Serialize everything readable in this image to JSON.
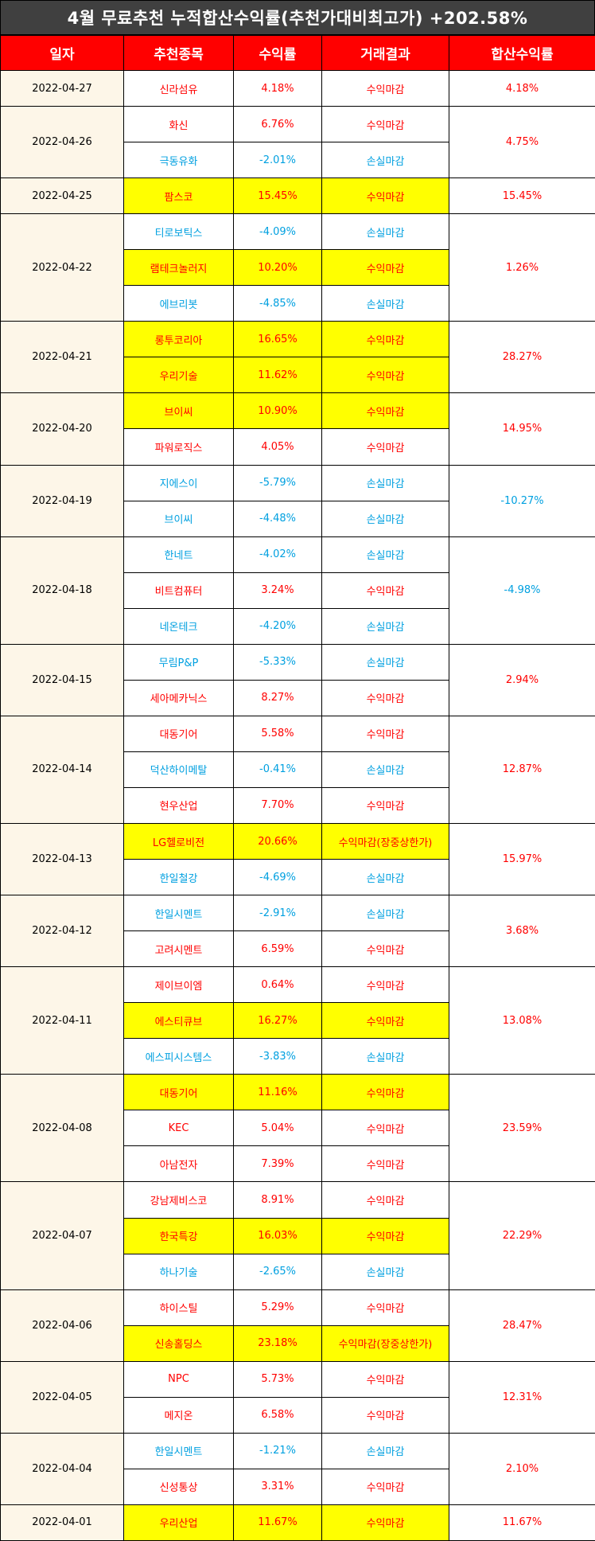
{
  "title": "4월 무료추천 누적합산수익률(추천가대비최고가) +202.58%",
  "headers": [
    "일자",
    "추천종목",
    "수익률",
    "거래결과",
    "합산수익률"
  ],
  "groups": [
    {
      "date": "2022-04-27",
      "total": "4.18%",
      "total_sign": "pos",
      "rows": [
        {
          "stock": "신라섬유",
          "ret": "4.18%",
          "result": "수익마감",
          "sign": "pos",
          "hl": false
        }
      ]
    },
    {
      "date": "2022-04-26",
      "total": "4.75%",
      "total_sign": "pos",
      "rows": [
        {
          "stock": "화신",
          "ret": "6.76%",
          "result": "수익마감",
          "sign": "pos",
          "hl": false
        },
        {
          "stock": "극동유화",
          "ret": "-2.01%",
          "result": "손실마감",
          "sign": "neg",
          "hl": false
        }
      ]
    },
    {
      "date": "2022-04-25",
      "total": "15.45%",
      "total_sign": "pos",
      "rows": [
        {
          "stock": "팜스코",
          "ret": "15.45%",
          "result": "수익마감",
          "sign": "pos",
          "hl": true
        }
      ]
    },
    {
      "date": "2022-04-22",
      "total": "1.26%",
      "total_sign": "pos",
      "rows": [
        {
          "stock": "티로보틱스",
          "ret": "-4.09%",
          "result": "손실마감",
          "sign": "neg",
          "hl": false
        },
        {
          "stock": "램테크놀러지",
          "ret": "10.20%",
          "result": "수익마감",
          "sign": "pos",
          "hl": true
        },
        {
          "stock": "에브리봇",
          "ret": "-4.85%",
          "result": "손실마감",
          "sign": "neg",
          "hl": false
        }
      ]
    },
    {
      "date": "2022-04-21",
      "total": "28.27%",
      "total_sign": "pos",
      "rows": [
        {
          "stock": "롱투코리아",
          "ret": "16.65%",
          "result": "수익마감",
          "sign": "pos",
          "hl": true
        },
        {
          "stock": "우리기술",
          "ret": "11.62%",
          "result": "수익마감",
          "sign": "pos",
          "hl": true
        }
      ]
    },
    {
      "date": "2022-04-20",
      "total": "14.95%",
      "total_sign": "pos",
      "rows": [
        {
          "stock": "브이씨",
          "ret": "10.90%",
          "result": "수익마감",
          "sign": "pos",
          "hl": true
        },
        {
          "stock": "파워로직스",
          "ret": "4.05%",
          "result": "수익마감",
          "sign": "pos",
          "hl": false
        }
      ]
    },
    {
      "date": "2022-04-19",
      "total": "-10.27%",
      "total_sign": "neg",
      "rows": [
        {
          "stock": "지에스이",
          "ret": "-5.79%",
          "result": "손실마감",
          "sign": "neg",
          "hl": false
        },
        {
          "stock": "브이씨",
          "ret": "-4.48%",
          "result": "손실마감",
          "sign": "neg",
          "hl": false
        }
      ]
    },
    {
      "date": "2022-04-18",
      "total": "-4.98%",
      "total_sign": "neg",
      "rows": [
        {
          "stock": "한네트",
          "ret": "-4.02%",
          "result": "손실마감",
          "sign": "neg",
          "hl": false
        },
        {
          "stock": "비트컴퓨터",
          "ret": "3.24%",
          "result": "수익마감",
          "sign": "pos",
          "hl": false
        },
        {
          "stock": "네온테크",
          "ret": "-4.20%",
          "result": "손실마감",
          "sign": "neg",
          "hl": false
        }
      ]
    },
    {
      "date": "2022-04-15",
      "total": "2.94%",
      "total_sign": "pos",
      "rows": [
        {
          "stock": "무림P&P",
          "ret": "-5.33%",
          "result": "손실마감",
          "sign": "neg",
          "hl": false
        },
        {
          "stock": "세아메카닉스",
          "ret": "8.27%",
          "result": "수익마감",
          "sign": "pos",
          "hl": false
        }
      ]
    },
    {
      "date": "2022-04-14",
      "total": "12.87%",
      "total_sign": "pos",
      "rows": [
        {
          "stock": "대동기어",
          "ret": "5.58%",
          "result": "수익마감",
          "sign": "pos",
          "hl": false
        },
        {
          "stock": "덕산하이메탈",
          "ret": "-0.41%",
          "result": "손실마감",
          "sign": "neg",
          "hl": false
        },
        {
          "stock": "현우산업",
          "ret": "7.70%",
          "result": "수익마감",
          "sign": "pos",
          "hl": false
        }
      ]
    },
    {
      "date": "2022-04-13",
      "total": "15.97%",
      "total_sign": "pos",
      "rows": [
        {
          "stock": "LG헬로비전",
          "ret": "20.66%",
          "result": "수익마감(장중상한가)",
          "sign": "pos",
          "hl": true
        },
        {
          "stock": "한일철강",
          "ret": "-4.69%",
          "result": "손실마감",
          "sign": "neg",
          "hl": false
        }
      ]
    },
    {
      "date": "2022-04-12",
      "total": "3.68%",
      "total_sign": "pos",
      "rows": [
        {
          "stock": "한일시멘트",
          "ret": "-2.91%",
          "result": "손실마감",
          "sign": "neg",
          "hl": false
        },
        {
          "stock": "고려시멘트",
          "ret": "6.59%",
          "result": "수익마감",
          "sign": "pos",
          "hl": false
        }
      ]
    },
    {
      "date": "2022-04-11",
      "total": "13.08%",
      "total_sign": "pos",
      "rows": [
        {
          "stock": "제이브이엠",
          "ret": "0.64%",
          "result": "수익마감",
          "sign": "pos",
          "hl": false
        },
        {
          "stock": "에스티큐브",
          "ret": "16.27%",
          "result": "수익마감",
          "sign": "pos",
          "hl": true
        },
        {
          "stock": "에스피시스템스",
          "ret": "-3.83%",
          "result": "손실마감",
          "sign": "neg",
          "hl": false
        }
      ]
    },
    {
      "date": "2022-04-08",
      "total": "23.59%",
      "total_sign": "pos",
      "rows": [
        {
          "stock": "대동기어",
          "ret": "11.16%",
          "result": "수익마감",
          "sign": "pos",
          "hl": true
        },
        {
          "stock": "KEC",
          "ret": "5.04%",
          "result": "수익마감",
          "sign": "pos",
          "hl": false
        },
        {
          "stock": "아남전자",
          "ret": "7.39%",
          "result": "수익마감",
          "sign": "pos",
          "hl": false
        }
      ]
    },
    {
      "date": "2022-04-07",
      "total": "22.29%",
      "total_sign": "pos",
      "rows": [
        {
          "stock": "강남제비스코",
          "ret": "8.91%",
          "result": "수익마감",
          "sign": "pos",
          "hl": false
        },
        {
          "stock": "한국특강",
          "ret": "16.03%",
          "result": "수익마감",
          "sign": "pos",
          "hl": true
        },
        {
          "stock": "하나기술",
          "ret": "-2.65%",
          "result": "손실마감",
          "sign": "neg",
          "hl": false
        }
      ]
    },
    {
      "date": "2022-04-06",
      "total": "28.47%",
      "total_sign": "pos",
      "rows": [
        {
          "stock": "하이스틸",
          "ret": "5.29%",
          "result": "수익마감",
          "sign": "pos",
          "hl": false
        },
        {
          "stock": "신송홀딩스",
          "ret": "23.18%",
          "result": "수익마감(장중상한가)",
          "sign": "pos",
          "hl": true
        }
      ]
    },
    {
      "date": "2022-04-05",
      "total": "12.31%",
      "total_sign": "pos",
      "rows": [
        {
          "stock": "NPC",
          "ret": "5.73%",
          "result": "수익마감",
          "sign": "pos",
          "hl": false
        },
        {
          "stock": "메지온",
          "ret": "6.58%",
          "result": "수익마감",
          "sign": "pos",
          "hl": false
        }
      ]
    },
    {
      "date": "2022-04-04",
      "total": "2.10%",
      "total_sign": "pos",
      "rows": [
        {
          "stock": "한일시멘트",
          "ret": "-1.21%",
          "result": "손실마감",
          "sign": "neg",
          "hl": false
        },
        {
          "stock": "신성통상",
          "ret": "3.31%",
          "result": "수익마감",
          "sign": "pos",
          "hl": false
        }
      ]
    },
    {
      "date": "2022-04-01",
      "total": "11.67%",
      "total_sign": "pos",
      "rows": [
        {
          "stock": "우리산업",
          "ret": "11.67%",
          "result": "수익마감",
          "sign": "pos",
          "hl": true
        }
      ]
    }
  ],
  "colors": {
    "header_bg": "#ff0000",
    "title_bg": "#404040",
    "positive": "#ff0000",
    "negative": "#00a0e0",
    "highlight": "#ffff00",
    "date_bg": "#fdf6e8"
  }
}
